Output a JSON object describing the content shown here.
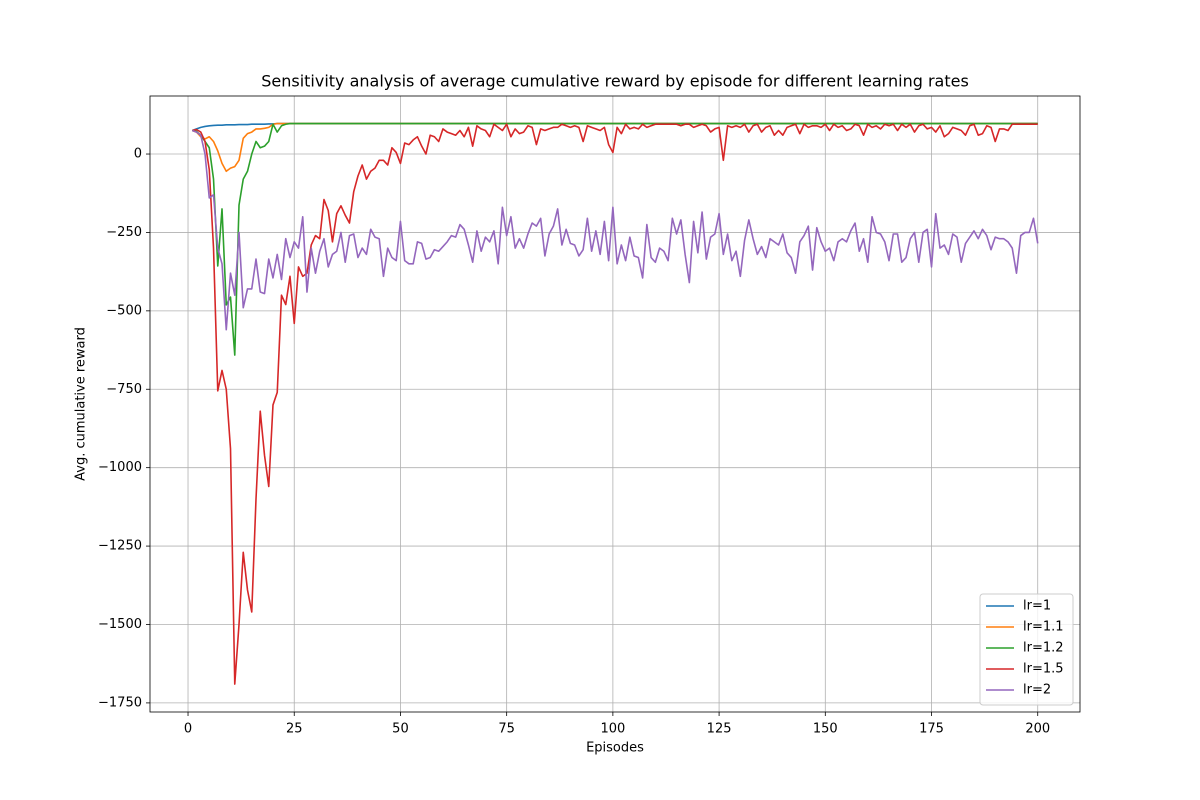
{
  "chart_data": {
    "type": "line",
    "title": "Sensitivity analysis of average cumulative reward by episode for different learning rates",
    "x_label": "Episodes",
    "y_label": "Avg. cumulative reward",
    "xlim": [
      -8.95,
      209.95
    ],
    "ylim": [
      -1779,
      185
    ],
    "xticks": [
      0,
      25,
      50,
      75,
      100,
      125,
      150,
      175,
      200
    ],
    "yticks": [
      {
        "value": -1750,
        "label": "−1750"
      },
      {
        "value": -1500,
        "label": "−1500"
      },
      {
        "value": -1250,
        "label": "−1250"
      },
      {
        "value": -1000,
        "label": "−1000"
      },
      {
        "value": -750,
        "label": "−750"
      },
      {
        "value": -500,
        "label": "−500"
      },
      {
        "value": -250,
        "label": "−250"
      },
      0
    ],
    "grid": true,
    "legend": "lower right",
    "x": [
      1,
      2,
      3,
      4,
      5,
      6,
      7,
      8,
      9,
      10,
      11,
      12,
      13,
      14,
      15,
      16,
      17,
      18,
      19,
      20,
      21,
      22,
      23,
      24,
      25,
      26,
      27,
      28,
      29,
      30,
      31,
      32,
      33,
      34,
      35,
      36,
      37,
      38,
      39,
      40,
      41,
      42,
      43,
      44,
      45,
      46,
      47,
      48,
      49,
      50,
      51,
      52,
      53,
      54,
      55,
      56,
      57,
      58,
      59,
      60,
      61,
      62,
      63,
      64,
      65,
      66,
      67,
      68,
      69,
      70,
      71,
      72,
      73,
      74,
      75,
      76,
      77,
      78,
      79,
      80,
      81,
      82,
      83,
      84,
      85,
      86,
      87,
      88,
      89,
      90,
      91,
      92,
      93,
      94,
      95,
      96,
      97,
      98,
      99,
      100,
      101,
      102,
      103,
      104,
      105,
      106,
      107,
      108,
      109,
      110,
      111,
      112,
      113,
      114,
      115,
      116,
      117,
      118,
      119,
      120,
      121,
      122,
      123,
      124,
      125,
      126,
      127,
      128,
      129,
      130,
      131,
      132,
      133,
      134,
      135,
      136,
      137,
      138,
      139,
      140,
      141,
      142,
      143,
      144,
      145,
      146,
      147,
      148,
      149,
      150,
      151,
      152,
      153,
      154,
      155,
      156,
      157,
      158,
      159,
      160,
      161,
      162,
      163,
      164,
      165,
      166,
      167,
      168,
      169,
      170,
      171,
      172,
      173,
      174,
      175,
      176,
      177,
      178,
      179,
      180,
      181,
      182,
      183,
      184,
      185,
      186,
      187,
      188,
      189,
      190,
      191,
      192,
      193,
      194,
      195,
      196,
      197,
      198,
      199,
      200
    ],
    "series": [
      {
        "name": "lr=1",
        "color": "#1f77b4",
        "values": [
          75,
          80,
          85,
          88,
          90,
          91,
          92,
          92,
          93,
          93,
          93,
          94,
          94,
          94,
          95,
          95,
          95,
          95,
          96,
          96,
          97,
          97,
          97,
          97,
          97,
          97,
          97,
          97,
          97,
          97,
          97,
          97,
          97,
          97,
          97,
          97,
          97,
          97,
          97,
          97,
          97,
          97,
          97,
          97,
          97,
          97,
          97,
          97,
          97,
          97,
          97,
          97,
          97,
          97,
          97,
          97,
          97,
          97,
          97,
          97,
          97,
          97,
          97,
          97,
          97,
          97,
          97,
          97,
          97,
          97,
          97,
          97,
          97,
          97,
          97,
          97,
          97,
          97,
          97,
          97,
          97,
          97,
          97,
          97,
          97,
          97,
          97,
          97,
          97,
          97,
          97,
          97,
          97,
          97,
          97,
          97,
          97,
          97,
          97,
          97,
          97,
          97,
          97,
          97,
          97,
          97,
          97,
          97,
          97,
          97,
          97,
          97,
          97,
          97,
          97,
          97,
          97,
          97,
          97,
          97,
          97,
          97,
          97,
          97,
          97,
          97,
          97,
          97,
          97,
          97,
          97,
          97,
          97,
          97,
          97,
          97,
          97,
          97,
          97,
          97,
          97,
          97,
          97,
          97,
          97,
          97,
          97,
          97,
          97,
          97,
          97,
          97,
          97,
          97,
          97,
          97,
          97,
          97,
          97,
          97,
          97,
          97,
          97,
          97,
          97,
          97,
          97,
          97,
          97,
          97,
          97,
          97,
          97,
          97,
          97,
          97,
          97,
          97,
          97,
          97,
          97,
          97,
          97,
          97,
          97,
          97,
          97,
          97,
          97,
          97,
          97,
          97,
          97,
          97,
          97,
          97,
          97,
          97,
          97,
          97
        ]
      },
      {
        "name": "lr=1.1",
        "color": "#ff7f0e",
        "values": [
          75,
          70,
          55,
          48,
          55,
          40,
          10,
          -30,
          -55,
          -45,
          -40,
          -20,
          50,
          65,
          70,
          80,
          80,
          82,
          85,
          95,
          97,
          97,
          97,
          97,
          97,
          97,
          97,
          97,
          97,
          97,
          97,
          97,
          97,
          97,
          97,
          97,
          97,
          97,
          97,
          97,
          97,
          97,
          97,
          97,
          97,
          97,
          97,
          97,
          97,
          97,
          97,
          97,
          97,
          97,
          97,
          97,
          97,
          97,
          97,
          97,
          97,
          97,
          97,
          97,
          97,
          97,
          97,
          97,
          97,
          97,
          97,
          97,
          97,
          97,
          97,
          97,
          97,
          97,
          97,
          97,
          97,
          97,
          97,
          97,
          97,
          97,
          97,
          97,
          97,
          97,
          97,
          97,
          97,
          97,
          97,
          97,
          97,
          97,
          97,
          97,
          97,
          97,
          97,
          97,
          97,
          97,
          97,
          97,
          97,
          97,
          97,
          97,
          97,
          97,
          97,
          97,
          97,
          97,
          97,
          97,
          97,
          97,
          97,
          97,
          97,
          97,
          97,
          97,
          97,
          97,
          97,
          97,
          97,
          97,
          97,
          97,
          97,
          97,
          97,
          97,
          97,
          97,
          97,
          97,
          97,
          97,
          97,
          97,
          97,
          97,
          97,
          97,
          97,
          97,
          97,
          97,
          97,
          97,
          97,
          97,
          97,
          97,
          97,
          97,
          97,
          97,
          97,
          97,
          97,
          97,
          97,
          97,
          97,
          97,
          97,
          97,
          97,
          97,
          97,
          97,
          97,
          97,
          97,
          97,
          97,
          97,
          97,
          97,
          97,
          97,
          97,
          97,
          97,
          97,
          97,
          97,
          97,
          97,
          97,
          97
        ]
      },
      {
        "name": "lr=1.2",
        "color": "#2ca02c",
        "values": [
          75,
          72,
          60,
          40,
          20,
          -80,
          -357,
          -175,
          -481,
          -456,
          -641,
          -163,
          -80,
          -55,
          0,
          40,
          20,
          25,
          40,
          95,
          70,
          90,
          95,
          97,
          97,
          97,
          97,
          97,
          97,
          97,
          97,
          97,
          97,
          97,
          97,
          97,
          97,
          97,
          97,
          97,
          97,
          97,
          97,
          97,
          97,
          97,
          97,
          97,
          97,
          97,
          97,
          97,
          97,
          97,
          97,
          97,
          97,
          97,
          97,
          97,
          97,
          97,
          97,
          97,
          97,
          97,
          97,
          97,
          97,
          97,
          97,
          97,
          97,
          97,
          97,
          97,
          97,
          97,
          97,
          97,
          97,
          97,
          97,
          97,
          97,
          97,
          97,
          97,
          97,
          97,
          97,
          97,
          97,
          97,
          97,
          97,
          97,
          97,
          97,
          97,
          97,
          97,
          97,
          97,
          97,
          97,
          97,
          97,
          97,
          97,
          97,
          97,
          97,
          97,
          97,
          97,
          97,
          97,
          97,
          97,
          97,
          97,
          97,
          97,
          97,
          97,
          97,
          97,
          97,
          97,
          97,
          97,
          97,
          97,
          97,
          97,
          97,
          97,
          97,
          97,
          97,
          97,
          97,
          97,
          97,
          97,
          97,
          97,
          97,
          97,
          97,
          97,
          97,
          97,
          97,
          97,
          97,
          97,
          97,
          97,
          97,
          97,
          97,
          97,
          97,
          97,
          97,
          97,
          97,
          97,
          97,
          97,
          97,
          97,
          97,
          97,
          97,
          97,
          97,
          97,
          97,
          97,
          97,
          97,
          97,
          97,
          97,
          97,
          97,
          97,
          97,
          97,
          97,
          97,
          97,
          97,
          97,
          97,
          97,
          97
        ]
      },
      {
        "name": "lr=1.5",
        "color": "#d62728",
        "values": [
          75,
          78,
          70,
          40,
          -50,
          -300,
          -755,
          -690,
          -750,
          -940,
          -1690,
          -1500,
          -1270,
          -1390,
          -1460,
          -1100,
          -820,
          -960,
          -1060,
          -800,
          -760,
          -450,
          -480,
          -390,
          -540,
          -360,
          -390,
          -380,
          -290,
          -260,
          -270,
          -145,
          -180,
          -280,
          -190,
          -165,
          -195,
          -220,
          -120,
          -70,
          -35,
          -80,
          -55,
          -45,
          -20,
          -20,
          -35,
          20,
          5,
          -30,
          35,
          30,
          45,
          55,
          25,
          0,
          60,
          55,
          40,
          80,
          70,
          65,
          60,
          75,
          55,
          85,
          25,
          90,
          80,
          75,
          55,
          95,
          85,
          75,
          95,
          55,
          80,
          65,
          70,
          90,
          85,
          30,
          80,
          75,
          80,
          85,
          85,
          95,
          90,
          85,
          90,
          85,
          40,
          90,
          85,
          80,
          75,
          85,
          30,
          5,
          85,
          65,
          95,
          80,
          85,
          80,
          95,
          85,
          90,
          95,
          95,
          95,
          95,
          95,
          95,
          90,
          95,
          95,
          85,
          90,
          95,
          90,
          70,
          80,
          85,
          -20,
          90,
          85,
          90,
          85,
          95,
          70,
          90,
          95,
          70,
          85,
          90,
          60,
          75,
          60,
          85,
          90,
          95,
          65,
          95,
          85,
          90,
          90,
          85,
          95,
          75,
          95,
          85,
          90,
          75,
          80,
          95,
          90,
          60,
          95,
          85,
          90,
          80,
          95,
          90,
          95,
          75,
          95,
          85,
          95,
          70,
          90,
          95,
          80,
          85,
          70,
          90,
          55,
          65,
          85,
          80,
          75,
          60,
          90,
          95,
          60,
          65,
          90,
          85,
          40,
          80,
          80,
          75,
          95,
          95,
          95,
          95,
          95,
          95,
          95
        ]
      },
      {
        "name": "lr=2",
        "color": "#9467bd",
        "values": [
          75,
          70,
          60,
          0,
          -140,
          -130,
          -300,
          -350,
          -560,
          -380,
          -450,
          -250,
          -490,
          -430,
          -430,
          -335,
          -440,
          -445,
          -335,
          -395,
          -320,
          -400,
          -270,
          -330,
          -280,
          -300,
          -200,
          -440,
          -300,
          -380,
          -310,
          -270,
          -360,
          -320,
          -310,
          -250,
          -345,
          -260,
          -255,
          -330,
          -300,
          -320,
          -240,
          -265,
          -270,
          -390,
          -300,
          -330,
          -340,
          -215,
          -340,
          -350,
          -350,
          -280,
          -285,
          -335,
          -330,
          -305,
          -310,
          -295,
          -280,
          -260,
          -265,
          -225,
          -240,
          -290,
          -345,
          -245,
          -310,
          -265,
          -280,
          -245,
          -350,
          -170,
          -260,
          -200,
          -300,
          -270,
          -300,
          -255,
          -220,
          -230,
          -205,
          -325,
          -255,
          -230,
          -175,
          -290,
          -240,
          -285,
          -290,
          -325,
          -305,
          -205,
          -310,
          -245,
          -320,
          -215,
          -340,
          -170,
          -350,
          -290,
          -340,
          -265,
          -325,
          -330,
          -395,
          -225,
          -330,
          -345,
          -300,
          -310,
          -340,
          -205,
          -255,
          -210,
          -320,
          -410,
          -215,
          -315,
          -185,
          -335,
          -265,
          -255,
          -190,
          -320,
          -255,
          -340,
          -310,
          -390,
          -275,
          -210,
          -270,
          -320,
          -295,
          -330,
          -270,
          -280,
          -290,
          -255,
          -315,
          -330,
          -380,
          -280,
          -260,
          -230,
          -370,
          -235,
          -280,
          -310,
          -300,
          -340,
          -280,
          -270,
          -280,
          -245,
          -220,
          -310,
          -270,
          -345,
          -200,
          -250,
          -255,
          -280,
          -340,
          -255,
          -255,
          -345,
          -330,
          -270,
          -250,
          -345,
          -250,
          -240,
          -360,
          -190,
          -300,
          -290,
          -320,
          -255,
          -265,
          -345,
          -285,
          -265,
          -245,
          -270,
          -240,
          -260,
          -305,
          -265,
          -270,
          -270,
          -280,
          -300,
          -380,
          -260,
          -250,
          -250,
          -205,
          -285
        ]
      }
    ]
  }
}
